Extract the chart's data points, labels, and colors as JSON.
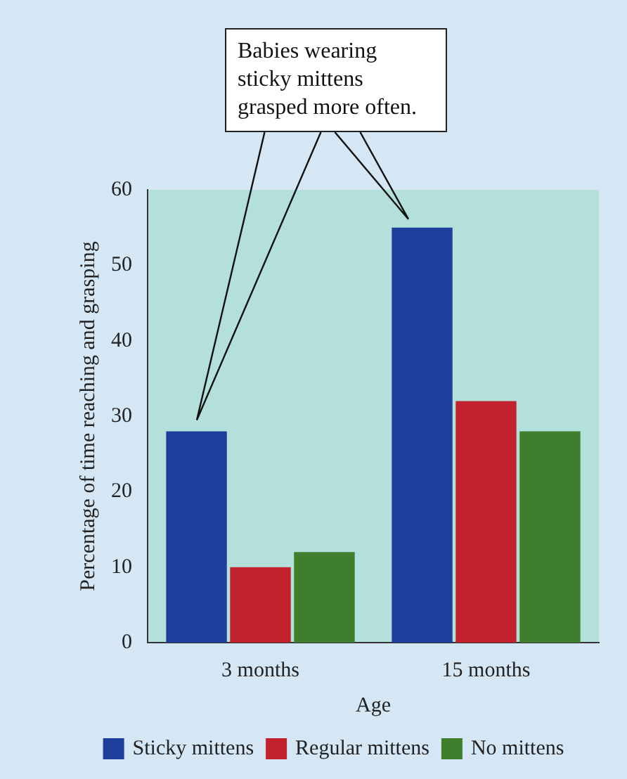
{
  "chart_data": {
    "type": "bar",
    "xlabel": "Age",
    "ylabel": "Percentage of time reaching and grasping",
    "categories": [
      "3 months",
      "15 months"
    ],
    "series": [
      {
        "name": "Sticky mittens",
        "color": "#1f3e9c",
        "values": [
          28,
          55
        ]
      },
      {
        "name": "Regular mittens",
        "color": "#c1222e",
        "values": [
          10,
          32
        ]
      },
      {
        "name": "No mittens",
        "color": "#3e7e2c",
        "values": [
          12,
          28
        ]
      }
    ],
    "ylim": [
      0,
      60
    ],
    "yticks": [
      0,
      10,
      20,
      30,
      40,
      50,
      60
    ],
    "grid": false,
    "legend": "bottom",
    "annotations": [
      "Babies wearing sticky mittens grasped more often."
    ]
  }
}
